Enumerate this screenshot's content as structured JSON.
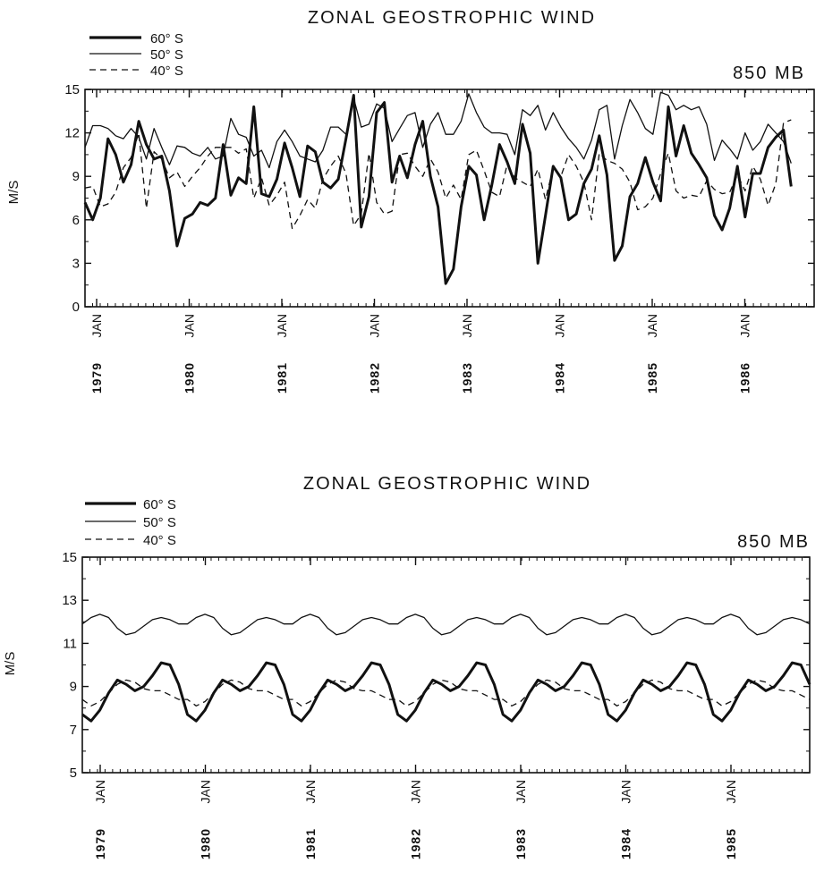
{
  "chart_data": [
    {
      "type": "line",
      "title": "ZONAL GEOSTROPHIC WIND",
      "level_label": "850 MB",
      "ylabel": "M/S",
      "ylim": [
        0,
        15
      ],
      "yticks": [
        0,
        3,
        6,
        9,
        12,
        15
      ],
      "x_month_index_range": [
        0,
        95
      ],
      "xticks": [
        {
          "month": "JAN",
          "year": "1979"
        },
        {
          "month": "JAN",
          "year": "1980"
        },
        {
          "month": "JAN",
          "year": "1981"
        },
        {
          "month": "JAN",
          "year": "1982"
        },
        {
          "month": "JAN",
          "year": "1983"
        },
        {
          "month": "JAN",
          "year": "1984"
        },
        {
          "month": "JAN",
          "year": "1985"
        },
        {
          "month": "JAN",
          "year": "1986"
        }
      ],
      "series": [
        {
          "name": "60° S",
          "style": "thick",
          "values": [
            7.2,
            6.0,
            7.5,
            11.6,
            10.5,
            8.6,
            9.8,
            12.8,
            11.2,
            10.2,
            10.4,
            8.0,
            4.2,
            6.1,
            6.4,
            7.2,
            7.0,
            7.5,
            11.2,
            7.7,
            8.9,
            8.5,
            13.8,
            7.8,
            7.6,
            8.8,
            11.3,
            9.6,
            7.6,
            11.1,
            10.7,
            8.6,
            8.2,
            8.8,
            11.6,
            14.6,
            5.5,
            7.6,
            13.4,
            14.1,
            8.6,
            10.4,
            8.9,
            11.2,
            12.8,
            9.0,
            6.9,
            1.6,
            2.6,
            6.9,
            9.7,
            9.1,
            6.0,
            8.4,
            11.2,
            10.0,
            8.5,
            12.6,
            10.6,
            3.0,
            6.3,
            9.7,
            8.9,
            6.0,
            6.4,
            8.5,
            9.5,
            11.8,
            9.1,
            3.2,
            4.2,
            7.6,
            8.5,
            10.3,
            8.6,
            7.3,
            13.8,
            10.4,
            12.5,
            10.6,
            9.8,
            8.9,
            6.3,
            5.3,
            6.8,
            9.7,
            6.2,
            9.2,
            9.2,
            11.0,
            11.7,
            12.2,
            8.3
          ]
        },
        {
          "name": "50° S",
          "style": "thin",
          "values": [
            11.0,
            12.5,
            12.5,
            12.3,
            11.8,
            11.6,
            12.3,
            11.7,
            10.2,
            12.3,
            11.0,
            9.8,
            11.1,
            11.0,
            10.6,
            10.4,
            11.0,
            10.2,
            10.4,
            13.0,
            11.9,
            11.7,
            10.4,
            10.8,
            9.6,
            11.4,
            12.2,
            11.4,
            10.4,
            10.2,
            10.0,
            10.8,
            12.4,
            12.4,
            11.9,
            14.4,
            12.4,
            12.6,
            14.0,
            13.7,
            11.4,
            12.3,
            13.2,
            13.4,
            11.0,
            12.6,
            13.4,
            11.9,
            11.9,
            12.8,
            14.7,
            13.4,
            12.4,
            12.0,
            12.0,
            11.9,
            10.5,
            13.6,
            13.2,
            13.9,
            12.2,
            13.4,
            12.4,
            11.6,
            11.0,
            10.2,
            11.5,
            13.6,
            13.9,
            10.2,
            12.5,
            14.3,
            13.4,
            12.3,
            11.9,
            14.8,
            14.6,
            13.6,
            13.9,
            13.6,
            13.8,
            12.6,
            10.1,
            11.5,
            10.9,
            10.2,
            12.0,
            10.8,
            11.4,
            12.6,
            12.0,
            11.4,
            9.9
          ]
        },
        {
          "name": "40° S",
          "style": "dashed",
          "values": [
            8.2,
            8.3,
            6.9,
            7.1,
            7.9,
            9.6,
            10.3,
            12.0,
            6.8,
            10.7,
            10.2,
            8.9,
            9.3,
            8.3,
            9.0,
            9.6,
            10.4,
            11.0,
            11.0,
            11.0,
            10.6,
            10.9,
            7.5,
            8.9,
            7.0,
            7.7,
            8.6,
            5.4,
            6.3,
            7.4,
            6.8,
            8.8,
            9.7,
            10.4,
            9.2,
            5.6,
            6.4,
            10.6,
            7.2,
            6.4,
            6.6,
            10.5,
            10.6,
            9.7,
            9.0,
            10.2,
            9.3,
            7.5,
            8.4,
            7.4,
            10.5,
            10.8,
            9.4,
            7.9,
            7.6,
            9.8,
            8.9,
            8.6,
            8.3,
            9.5,
            7.4,
            9.6,
            9.0,
            10.5,
            9.7,
            8.6,
            6.0,
            10.6,
            10.1,
            9.9,
            9.5,
            8.6,
            6.7,
            6.9,
            7.5,
            9.2,
            10.6,
            8.0,
            7.5,
            7.7,
            7.6,
            8.7,
            8.1,
            7.8,
            7.9,
            9.1,
            8.0,
            9.7,
            8.8,
            7.0,
            8.5,
            12.7,
            12.9
          ]
        }
      ]
    },
    {
      "type": "line",
      "title": "ZONAL GEOSTROPHIC WIND",
      "level_label": "850 MB",
      "ylabel": "M/S",
      "ylim": [
        5,
        15
      ],
      "yticks": [
        5,
        7,
        9,
        11,
        13,
        15
      ],
      "x_month_index_range": [
        0,
        83
      ],
      "xticks": [
        {
          "month": "JAN",
          "year": "1979"
        },
        {
          "month": "JAN",
          "year": "1980"
        },
        {
          "month": "JAN",
          "year": "1981"
        },
        {
          "month": "JAN",
          "year": "1982"
        },
        {
          "month": "JAN",
          "year": "1983"
        },
        {
          "month": "JAN",
          "year": "1984"
        },
        {
          "month": "JAN",
          "year": "1985"
        }
      ],
      "series": [
        {
          "name": "60° S",
          "style": "thick",
          "annual_cycle": [
            7.7,
            7.4,
            7.9,
            8.7,
            9.3,
            9.1,
            8.8,
            9.0,
            9.5,
            10.1,
            10.0,
            9.1
          ]
        },
        {
          "name": "50° S",
          "style": "thin",
          "annual_cycle": [
            11.9,
            12.2,
            12.35,
            12.2,
            11.7,
            11.4,
            11.5,
            11.8,
            12.1,
            12.2,
            12.1,
            11.9
          ]
        },
        {
          "name": "40° S",
          "style": "dashed",
          "annual_cycle": [
            8.4,
            8.1,
            8.3,
            8.7,
            9.1,
            9.3,
            9.2,
            8.9,
            8.8,
            8.8,
            8.6,
            8.4
          ]
        }
      ]
    }
  ]
}
